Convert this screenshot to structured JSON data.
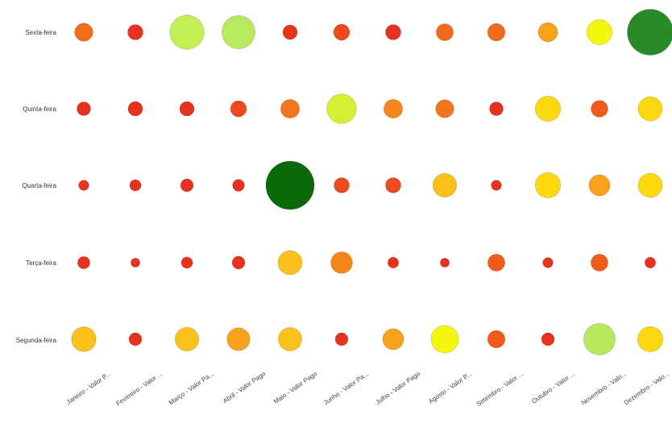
{
  "chart_data": {
    "type": "bubble-matrix",
    "title": "",
    "xlabel": "",
    "ylabel": "",
    "grid": false,
    "legend": "none",
    "rows": [
      "Sexta-feira",
      "Quinta-feira",
      "Quarta-feira",
      "Terça-feira",
      "Segunda-feira"
    ],
    "columns": [
      "Janeiro - Valor P...",
      "Fevereiro - Valor ...",
      "Março - Valor Pa...",
      "Abril - Valor Pago",
      "Maio - Valor Pago",
      "Junho - Valor Pa...",
      "Julho - Valor Pago",
      "Agosto - Valor P...",
      "Setembro - Valor ...",
      "Outubro - Valor ...",
      "Novembro - Valo...",
      "Dezembro - Valo..."
    ],
    "values": [
      [
        28,
        20,
        100,
        95,
        18,
        22,
        20,
        25,
        26,
        32,
        55,
        180
      ],
      [
        16,
        18,
        18,
        22,
        30,
        75,
        30,
        28,
        16,
        55,
        24,
        50
      ],
      [
        9,
        11,
        14,
        12,
        200,
        20,
        20,
        48,
        9,
        55,
        38,
        50
      ],
      [
        13,
        7,
        11,
        14,
        50,
        40,
        10,
        7,
        25,
        9,
        25,
        10
      ],
      [
        52,
        14,
        48,
        45,
        47,
        14,
        38,
        65,
        26,
        14,
        85,
        55
      ]
    ],
    "colors": [
      [
        "#f36e1a",
        "#e8321e",
        "#c3ee55",
        "#b7ea5f",
        "#e8321e",
        "#ed4a1d",
        "#e8321e",
        "#f26b1a",
        "#f26b1a",
        "#f7a31a",
        "#f4f60c",
        "#2a8a2a"
      ],
      [
        "#e8321e",
        "#e8321e",
        "#e8321e",
        "#ed4a1d",
        "#f3741a",
        "#d6ee33",
        "#f4861a",
        "#f3741a",
        "#e8321e",
        "#fcd80f",
        "#f05a1b",
        "#fcd80f"
      ],
      [
        "#e8321e",
        "#e8321e",
        "#e8321e",
        "#e8321e",
        "#0a6a0a",
        "#ed4a1d",
        "#ed4a1d",
        "#fcc01a",
        "#e8321e",
        "#fcd80f",
        "#f8a21c",
        "#fcd80f"
      ],
      [
        "#e8321e",
        "#e8321e",
        "#e8321e",
        "#e8321e",
        "#fcc01a",
        "#f4861a",
        "#e8321e",
        "#e8321e",
        "#f05a1b",
        "#e8321e",
        "#f05a1b",
        "#e8321e"
      ],
      [
        "#fcc01a",
        "#e8321e",
        "#fcc01a",
        "#f8a21c",
        "#fcc01a",
        "#e8321e",
        "#f8a21c",
        "#f4f60c",
        "#f05a1b",
        "#e8321e",
        "#b9e85a",
        "#fcd80f"
      ]
    ]
  }
}
